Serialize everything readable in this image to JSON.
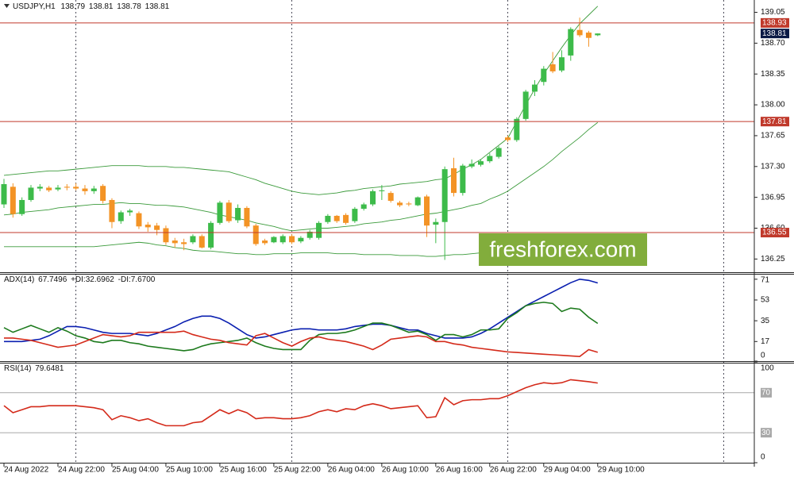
{
  "chart_data": [
    {
      "type": "candlestick",
      "title": "USDJPY,H1",
      "categories": [
        "24 Aug 2022",
        null,
        null,
        null,
        null,
        null,
        "24 Aug 22:00",
        null,
        null,
        null,
        null,
        null,
        "25 Aug 04:00",
        null,
        null,
        null,
        null,
        null,
        "25 Aug 10:00",
        null,
        null,
        null,
        null,
        null,
        "25 Aug 16:00",
        null,
        null,
        null,
        null,
        null,
        "25 Aug 22:00",
        null,
        null,
        null,
        null,
        null,
        "26 Aug 04:00",
        null,
        null,
        null,
        null,
        null,
        "26 Aug 10:00",
        null,
        null,
        null,
        null,
        null,
        "26 Aug 16:00",
        null,
        null,
        null,
        null,
        null,
        "26 Aug 22:00",
        null,
        null,
        null,
        null,
        null,
        "29 Aug 04:00",
        null,
        null,
        null,
        null,
        null,
        "29 Aug 10:00"
      ],
      "open": [
        136.87,
        137.07,
        136.76,
        136.92,
        137.05,
        137.06,
        137.04,
        137.07,
        137.07,
        137.05,
        137.02,
        137.08,
        136.92,
        136.68,
        136.78,
        136.77,
        136.64,
        136.63,
        136.6,
        136.46,
        136.44,
        136.44,
        136.51,
        136.38,
        136.66,
        136.89,
        136.69,
        136.83,
        136.63,
        136.46,
        136.44,
        136.44,
        136.51,
        136.45,
        136.49,
        136.49,
        136.67,
        136.74,
        136.75,
        136.68,
        136.82,
        136.87,
        137.02,
        137.0,
        136.89,
        136.88,
        136.86,
        136.96,
        136.64,
        136.67,
        137.28,
        137.0,
        137.3,
        137.32,
        137.36,
        137.41,
        137.63,
        137.6,
        137.84,
        138.15,
        138.26,
        138.46,
        138.39,
        138.56,
        138.85,
        138.82,
        138.79
      ],
      "high": [
        137.16,
        137.11,
        136.95,
        137.09,
        137.1,
        137.08,
        137.09,
        137.1,
        137.11,
        137.09,
        137.08,
        137.1,
        136.94,
        136.8,
        136.82,
        136.79,
        136.67,
        136.66,
        136.63,
        136.49,
        136.48,
        136.53,
        136.53,
        136.68,
        136.91,
        136.92,
        136.87,
        136.85,
        136.65,
        136.48,
        136.51,
        136.53,
        136.53,
        136.51,
        136.58,
        136.68,
        136.76,
        136.75,
        136.77,
        136.84,
        136.89,
        137.04,
        137.09,
        137.02,
        136.91,
        136.9,
        136.96,
        136.98,
        136.71,
        137.3,
        137.4,
        137.33,
        137.38,
        137.38,
        137.45,
        137.53,
        137.65,
        137.86,
        138.17,
        138.28,
        138.44,
        138.6,
        138.62,
        138.88,
        138.99,
        138.84,
        138.81
      ],
      "low": [
        136.83,
        136.72,
        136.74,
        136.9,
        137.02,
        137.01,
        137.02,
        137.03,
        137.03,
        136.98,
        136.99,
        136.88,
        136.6,
        136.65,
        136.74,
        136.59,
        136.56,
        136.52,
        136.41,
        136.38,
        136.35,
        136.42,
        136.37,
        136.36,
        136.64,
        136.66,
        136.66,
        136.6,
        136.4,
        136.41,
        136.43,
        136.42,
        136.42,
        136.43,
        136.47,
        136.47,
        136.65,
        136.66,
        136.64,
        136.66,
        136.8,
        136.85,
        136.92,
        136.89,
        136.84,
        136.85,
        136.85,
        136.5,
        136.43,
        136.24,
        136.96,
        136.97,
        137.28,
        137.3,
        137.34,
        137.39,
        137.58,
        137.58,
        137.82,
        138.1,
        138.22,
        138.36,
        138.37,
        138.5,
        138.77,
        138.66,
        138.78
      ],
      "close": [
        137.1,
        136.76,
        136.92,
        137.06,
        137.07,
        137.03,
        137.06,
        137.06,
        137.05,
        137.02,
        137.05,
        136.91,
        136.67,
        136.78,
        136.8,
        136.62,
        136.61,
        136.58,
        136.44,
        136.43,
        136.42,
        136.51,
        136.38,
        136.66,
        136.89,
        136.68,
        136.83,
        136.62,
        136.42,
        136.43,
        136.5,
        136.51,
        136.44,
        136.49,
        136.56,
        136.66,
        136.74,
        136.68,
        136.66,
        136.82,
        136.87,
        137.02,
        137.03,
        136.91,
        136.86,
        136.87,
        136.95,
        136.63,
        136.67,
        137.27,
        137.0,
        137.31,
        137.33,
        137.36,
        137.42,
        137.51,
        137.6,
        137.84,
        138.15,
        138.23,
        138.41,
        138.38,
        138.54,
        138.86,
        138.79,
        138.76,
        138.81
      ],
      "up_color": "#3dbb4a",
      "down_color": "#f39325",
      "series": [
        {
          "color": "#3a9a3a",
          "values": [
            137.2,
            137.21,
            137.22,
            137.23,
            137.24,
            137.25,
            137.25,
            137.26,
            137.27,
            137.28,
            137.29,
            137.3,
            137.31,
            137.31,
            137.31,
            137.31,
            137.3,
            137.3,
            137.3,
            137.29,
            137.29,
            137.28,
            137.27,
            137.26,
            137.25,
            137.24,
            137.21,
            137.18,
            137.15,
            137.11,
            137.08,
            137.05,
            137.02,
            137.0,
            136.99,
            136.98,
            136.99,
            137.0,
            137.02,
            137.03,
            137.05,
            137.06,
            137.07,
            137.08,
            137.1,
            137.11,
            137.12,
            137.13,
            137.15,
            137.16,
            137.21,
            137.27,
            137.32,
            137.38,
            137.46,
            137.54,
            137.62,
            137.81,
            138.0,
            138.18,
            138.35,
            138.5,
            138.65,
            138.79,
            138.92,
            139.02,
            139.12
          ]
        },
        {
          "color": "#3a9a3a",
          "values": [
            136.75,
            136.76,
            136.78,
            136.79,
            136.8,
            136.81,
            136.83,
            136.84,
            136.85,
            136.86,
            136.87,
            136.87,
            136.88,
            136.89,
            136.88,
            136.88,
            136.87,
            136.86,
            136.86,
            136.85,
            136.84,
            136.82,
            136.8,
            136.78,
            136.75,
            136.73,
            136.71,
            136.69,
            136.66,
            136.64,
            136.62,
            136.59,
            136.57,
            136.58,
            136.59,
            136.6,
            136.6,
            136.61,
            136.62,
            136.63,
            136.65,
            136.66,
            136.67,
            136.69,
            136.7,
            136.72,
            136.74,
            136.76,
            136.77,
            136.79,
            136.81,
            136.83,
            136.86,
            136.88,
            136.93,
            136.97,
            137.02,
            137.09,
            137.16,
            137.23,
            137.3,
            137.38,
            137.47,
            137.55,
            137.63,
            137.72,
            137.8
          ]
        },
        {
          "color": "#3a9a3a",
          "values": [
            136.39,
            136.39,
            136.39,
            136.39,
            136.39,
            136.39,
            136.39,
            136.39,
            136.39,
            136.39,
            136.39,
            136.4,
            136.41,
            136.42,
            136.43,
            136.44,
            136.43,
            136.41,
            136.4,
            136.38,
            136.37,
            136.35,
            136.34,
            136.34,
            136.33,
            136.32,
            136.31,
            136.31,
            136.3,
            136.3,
            136.31,
            136.31,
            136.31,
            136.32,
            136.32,
            136.32,
            136.32,
            136.31,
            136.31,
            136.31,
            136.3,
            136.3,
            136.3,
            136.3,
            136.29,
            136.29,
            136.29,
            136.28,
            136.28,
            136.29,
            136.3,
            136.3,
            136.31,
            136.32,
            136.33,
            136.34,
            136.34,
            136.35,
            136.36,
            136.37,
            136.38,
            136.39,
            136.4,
            136.42,
            136.43,
            136.44,
            136.45
          ]
        }
      ],
      "ylim": [
        136.1,
        139.19
      ],
      "yticks": [
        139.05,
        {
          "value": 138.7,
          "label": "138.70"
        },
        138.35,
        {
          "value": 138,
          "label": "138.00"
        },
        137.65,
        {
          "value": 137.3,
          "label": "137.30"
        },
        136.95,
        {
          "value": 136.6,
          "label": "136.60"
        },
        136.25
      ],
      "levels": [
        138.93,
        137.81,
        136.55
      ],
      "level_color": "#c0392b",
      "current_color": "#0b1a45",
      "watermark": "freshforex.com",
      "watermark_color": "#82ad3c"
    },
    {
      "type": "line",
      "title": "ADX(14)",
      "series": [
        {
          "color": "#0a1fb0",
          "readout": 67.7496,
          "values": [
            17,
            17,
            17,
            18,
            19,
            22,
            26,
            30,
            30,
            29,
            27,
            25,
            24,
            24,
            24,
            23,
            22,
            24,
            27,
            30,
            34,
            37,
            39,
            39,
            37,
            33,
            28,
            23,
            20,
            21,
            23,
            25,
            27,
            28,
            28,
            27,
            27,
            27,
            28,
            30,
            31,
            32,
            32,
            31,
            29,
            27,
            27,
            24,
            22,
            20,
            20,
            20,
            21,
            24,
            28,
            33,
            38,
            43,
            48,
            52,
            56,
            60,
            64,
            68,
            71,
            70,
            67.7496
          ]
        },
        {
          "name": "+DI:",
          "color": "#1d7a1d",
          "readout": 32.6962,
          "values": [
            29,
            25,
            28,
            31,
            28,
            25,
            29,
            26,
            22,
            20,
            17,
            16,
            18,
            18,
            16,
            15,
            13,
            12,
            11,
            10,
            9,
            10,
            13,
            15,
            16,
            17,
            18,
            20,
            16,
            13,
            11,
            10,
            10,
            10,
            18,
            23,
            24,
            24,
            25,
            27,
            30,
            33,
            33,
            31,
            28,
            25,
            26,
            23,
            18,
            23,
            23,
            21,
            23,
            27,
            27,
            28,
            37,
            42,
            48,
            50,
            51,
            50,
            43,
            46,
            45,
            38,
            32.6962
          ]
        },
        {
          "name": "-DI:",
          "color": "#d42a1a",
          "readout": {
            "value": 7.67,
            "label": "7.6700"
          },
          "values": [
            20,
            20,
            19,
            18,
            16,
            14,
            12,
            13,
            14,
            17,
            20,
            23,
            22,
            21,
            22,
            25,
            25,
            25,
            25,
            25,
            26,
            23,
            21,
            19,
            18,
            16,
            15,
            14,
            22,
            24,
            20,
            16,
            13,
            17,
            20,
            21,
            19,
            18,
            17,
            15,
            13,
            10,
            14,
            19,
            20,
            21,
            22,
            21,
            17,
            17,
            15,
            14,
            12,
            11,
            10,
            9,
            8,
            7.5,
            7,
            6.5,
            6,
            5.5,
            5,
            4.5,
            4,
            10,
            7.67
          ]
        }
      ],
      "ylim": [
        0,
        75
      ],
      "yticks": [
        71,
        53,
        35,
        17,
        0
      ]
    },
    {
      "type": "line",
      "title": "RSI(14)",
      "series": [
        {
          "color": "#d42a1a",
          "readout": 79.6481,
          "values": [
            57,
            50,
            53,
            56,
            56,
            57,
            57,
            57,
            57,
            56,
            55,
            53,
            43,
            47,
            45,
            42,
            44,
            40,
            37,
            37,
            37,
            40,
            41,
            47,
            53,
            49,
            53,
            50,
            44,
            45,
            45,
            44,
            44,
            45,
            47,
            51,
            53,
            51,
            54,
            53,
            57,
            59,
            57,
            54,
            55,
            56,
            57,
            45,
            46,
            65,
            58,
            62,
            63,
            63,
            64,
            64,
            67,
            71,
            75,
            78,
            80,
            79,
            80,
            83,
            82,
            81,
            79.6481
          ]
        }
      ],
      "ylim": [
        0,
        100
      ],
      "yticks": [
        100,
        0
      ],
      "levels": [
        70,
        30
      ],
      "level_color": "#a8a8a8"
    }
  ]
}
